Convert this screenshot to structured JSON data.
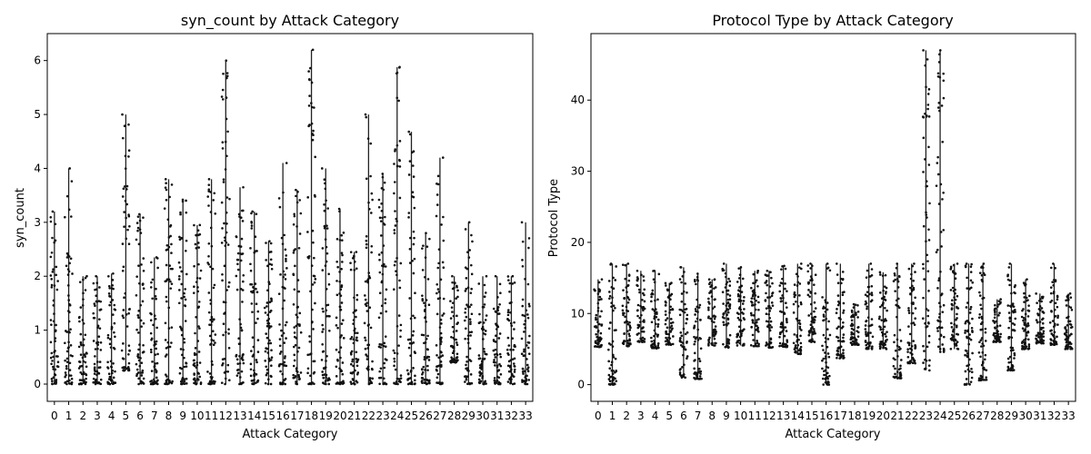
{
  "chart_data": [
    {
      "type": "strip",
      "title": "syn_count by Attack Category",
      "xlabel": "Attack Category",
      "ylabel": "syn_count",
      "categories": [
        "0",
        "1",
        "2",
        "3",
        "4",
        "5",
        "6",
        "7",
        "8",
        "9",
        "10",
        "11",
        "12",
        "13",
        "14",
        "15",
        "16",
        "17",
        "18",
        "19",
        "20",
        "21",
        "22",
        "23",
        "24",
        "25",
        "26",
        "27",
        "28",
        "29",
        "30",
        "31",
        "32",
        "33"
      ],
      "ylim": [
        -0.32,
        6.5
      ],
      "yticks": [
        0,
        1,
        2,
        3,
        4,
        5,
        6
      ],
      "grid": false,
      "series": [
        {
          "category": "0",
          "min": 0,
          "max": 3.2
        },
        {
          "category": "1",
          "min": 0,
          "max": 4.0
        },
        {
          "category": "2",
          "min": 0,
          "max": 2.0
        },
        {
          "category": "3",
          "min": 0,
          "max": 2.0
        },
        {
          "category": "4",
          "min": 0,
          "max": 2.05
        },
        {
          "category": "5",
          "min": 0.25,
          "max": 5.0
        },
        {
          "category": "6",
          "min": 0,
          "max": 3.15
        },
        {
          "category": "7",
          "min": 0,
          "max": 2.35
        },
        {
          "category": "8",
          "min": 0,
          "max": 3.8
        },
        {
          "category": "9",
          "min": 0,
          "max": 3.42
        },
        {
          "category": "10",
          "min": 0,
          "max": 2.95
        },
        {
          "category": "11",
          "min": 0,
          "max": 3.8
        },
        {
          "category": "12",
          "min": 0,
          "max": 6.0
        },
        {
          "category": "13",
          "min": 0,
          "max": 3.65
        },
        {
          "category": "14",
          "min": 0,
          "max": 3.2
        },
        {
          "category": "15",
          "min": 0,
          "max": 2.65
        },
        {
          "category": "16",
          "min": 0,
          "max": 4.1
        },
        {
          "category": "17",
          "min": 0,
          "max": 3.6
        },
        {
          "category": "18",
          "min": 0,
          "max": 6.2
        },
        {
          "category": "19",
          "min": 0,
          "max": 4.0
        },
        {
          "category": "20",
          "min": 0,
          "max": 3.25
        },
        {
          "category": "21",
          "min": 0,
          "max": 2.45
        },
        {
          "category": "22",
          "min": 0,
          "max": 5.0
        },
        {
          "category": "23",
          "min": 0,
          "max": 3.9
        },
        {
          "category": "24",
          "min": 0,
          "max": 5.88
        },
        {
          "category": "25",
          "min": 0,
          "max": 4.68
        },
        {
          "category": "26",
          "min": 0,
          "max": 2.8
        },
        {
          "category": "27",
          "min": 0,
          "max": 4.2
        },
        {
          "category": "28",
          "min": 0.4,
          "max": 2.0
        },
        {
          "category": "29",
          "min": 0,
          "max": 3.0
        },
        {
          "category": "30",
          "min": 0,
          "max": 2.0
        },
        {
          "category": "31",
          "min": 0,
          "max": 2.0
        },
        {
          "category": "32",
          "min": 0,
          "max": 2.0
        },
        {
          "category": "33",
          "min": 0,
          "max": 3.0
        }
      ]
    },
    {
      "type": "strip",
      "title": "Protocol Type by Attack Category",
      "xlabel": "Attack Category",
      "ylabel": "Protocol Type",
      "categories": [
        "0",
        "1",
        "2",
        "3",
        "4",
        "5",
        "6",
        "7",
        "8",
        "9",
        "10",
        "11",
        "12",
        "13",
        "14",
        "15",
        "16",
        "17",
        "18",
        "19",
        "20",
        "21",
        "22",
        "23",
        "24",
        "25",
        "26",
        "27",
        "28",
        "29",
        "30",
        "31",
        "32",
        "33"
      ],
      "ylim": [
        -2.35,
        49.35
      ],
      "yticks": [
        0,
        10,
        20,
        30,
        40
      ],
      "grid": false,
      "series": [
        {
          "category": "0",
          "min": 5.3,
          "max": 14.8
        },
        {
          "category": "1",
          "min": 0,
          "max": 17.0
        },
        {
          "category": "2",
          "min": 5.4,
          "max": 17.0
        },
        {
          "category": "3",
          "min": 6.0,
          "max": 16.0
        },
        {
          "category": "4",
          "min": 5.1,
          "max": 16.0
        },
        {
          "category": "5",
          "min": 5.6,
          "max": 14.3
        },
        {
          "category": "6",
          "min": 1.0,
          "max": 16.5
        },
        {
          "category": "7",
          "min": 0.8,
          "max": 15.6
        },
        {
          "category": "8",
          "min": 5.5,
          "max": 14.8
        },
        {
          "category": "9",
          "min": 5.2,
          "max": 17.0
        },
        {
          "category": "10",
          "min": 5.5,
          "max": 16.5
        },
        {
          "category": "11",
          "min": 5.4,
          "max": 16.0
        },
        {
          "category": "12",
          "min": 5.2,
          "max": 16.0
        },
        {
          "category": "13",
          "min": 5.3,
          "max": 16.7
        },
        {
          "category": "14",
          "min": 4.3,
          "max": 17.0
        },
        {
          "category": "15",
          "min": 6.0,
          "max": 17.0
        },
        {
          "category": "16",
          "min": 0,
          "max": 17.0
        },
        {
          "category": "17",
          "min": 3.7,
          "max": 17.0
        },
        {
          "category": "18",
          "min": 5.6,
          "max": 11.3
        },
        {
          "category": "19",
          "min": 5.0,
          "max": 17.0
        },
        {
          "category": "20",
          "min": 5.0,
          "max": 15.8
        },
        {
          "category": "21",
          "min": 0.9,
          "max": 17.0
        },
        {
          "category": "22",
          "min": 3.0,
          "max": 17.0
        },
        {
          "category": "23",
          "min": 2.0,
          "max": 47.0
        },
        {
          "category": "24",
          "min": 4.6,
          "max": 47.0
        },
        {
          "category": "25",
          "min": 5.0,
          "max": 17.0
        },
        {
          "category": "26",
          "min": 0,
          "max": 17.0
        },
        {
          "category": "27",
          "min": 0.6,
          "max": 17.0
        },
        {
          "category": "28",
          "min": 6.0,
          "max": 12.0
        },
        {
          "category": "29",
          "min": 2.0,
          "max": 17.0
        },
        {
          "category": "30",
          "min": 5.0,
          "max": 14.8
        },
        {
          "category": "31",
          "min": 5.8,
          "max": 12.8
        },
        {
          "category": "32",
          "min": 5.6,
          "max": 17.0
        },
        {
          "category": "33",
          "min": 5.0,
          "max": 12.8
        }
      ]
    }
  ]
}
